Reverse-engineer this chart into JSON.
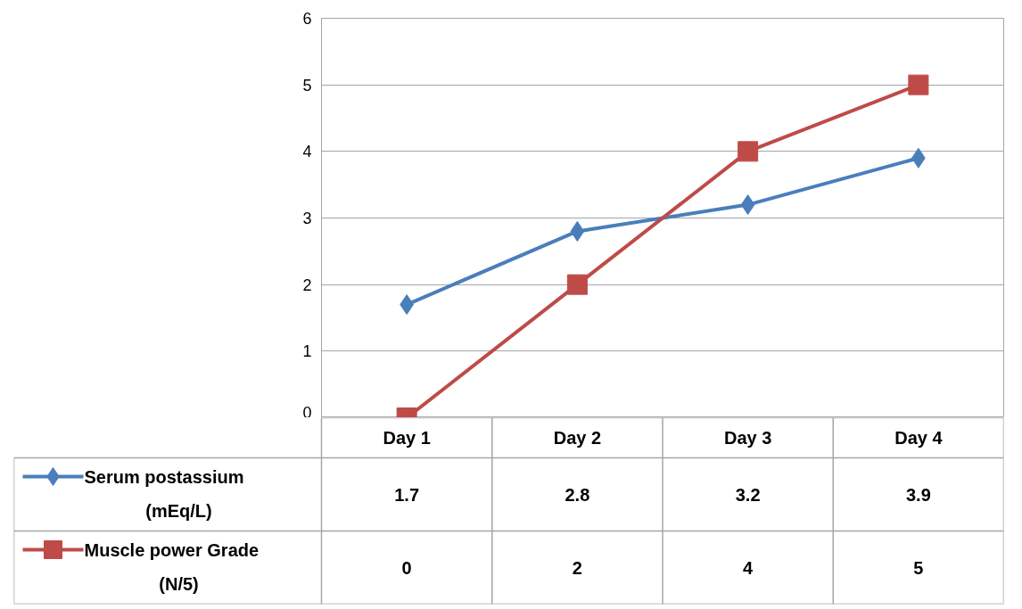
{
  "chart_data": {
    "type": "line",
    "categories": [
      "Day 1",
      "Day 2",
      "Day 3",
      "Day 4"
    ],
    "series": [
      {
        "name": "Serum postassium (mEq/L)",
        "color": "#4a7ebb",
        "marker": "diamond",
        "values": [
          1.7,
          2.8,
          3.2,
          3.9
        ]
      },
      {
        "name": "Muscle power Grade (N/5)",
        "color": "#be4b48",
        "marker": "square",
        "values": [
          0,
          2,
          4,
          5
        ]
      }
    ],
    "ylim": [
      0,
      6
    ],
    "yticks": [
      0,
      1,
      2,
      3,
      4,
      5,
      6
    ],
    "grid": "y",
    "legend": "bottom left",
    "data_labels": true,
    "line_style": "solid"
  }
}
